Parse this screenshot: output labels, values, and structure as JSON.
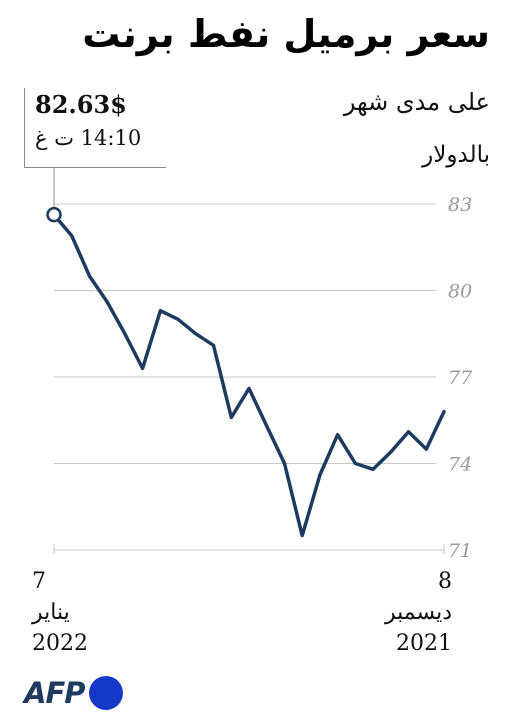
{
  "colors": {
    "line": "#1e3a5f",
    "grid": "#c8c8c8",
    "tick": "#9a9a9a",
    "logo": "#1e3a5f",
    "logo_dot": "#1538c8"
  },
  "header": {
    "title": "سعر برميل نفط برنت",
    "subtitle": "على مدى شهر",
    "unit": "بالدولار"
  },
  "callout": {
    "price": "82.63$",
    "time": "14:10 ت غ"
  },
  "x_axis": {
    "start": {
      "day": "7",
      "month": "يناير",
      "year": "2022"
    },
    "end": {
      "day": "8",
      "month": "ديسمبر",
      "year": "2021"
    }
  },
  "logo": {
    "text": "AFP",
    "icon": "afp-dot-icon"
  },
  "chart_data": {
    "type": "line",
    "direction": "right-to-left (oldest at right)",
    "ylim": [
      71,
      83
    ],
    "yticks": [
      71,
      74,
      77,
      80,
      83
    ],
    "grid": true,
    "series": [
      {
        "values": [
          82.63,
          81.9,
          80.5,
          79.6,
          78.5,
          77.3,
          79.3,
          79.0,
          78.5,
          78.1,
          75.6,
          76.6,
          75.3,
          74.0,
          71.5,
          73.6,
          75.0,
          74.0,
          73.8,
          74.4,
          75.1,
          74.5,
          75.8
        ]
      }
    ]
  }
}
